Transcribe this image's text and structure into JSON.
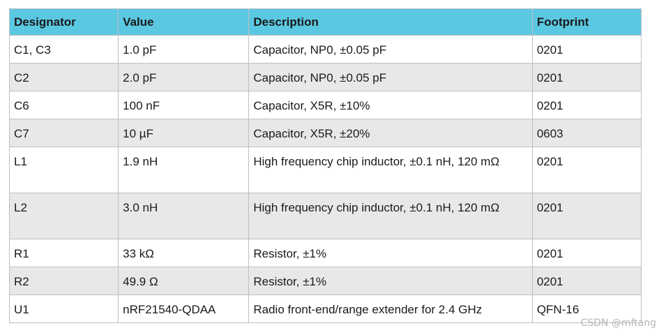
{
  "table": {
    "headers": {
      "designator": "Designator",
      "value": "Value",
      "description": "Description",
      "footprint": "Footprint"
    },
    "rows": [
      {
        "designator": "C1, C3",
        "value": "1.0 pF",
        "description": "Capacitor, NP0, ±0.05 pF",
        "footprint": "0201"
      },
      {
        "designator": "C2",
        "value": "2.0 pF",
        "description": "Capacitor, NP0, ±0.05 pF",
        "footprint": "0201"
      },
      {
        "designator": "C6",
        "value": "100 nF",
        "description": "Capacitor, X5R, ±10%",
        "footprint": "0201"
      },
      {
        "designator": "C7",
        "value": "10 µF",
        "description": "Capacitor, X5R, ±20%",
        "footprint": "0603"
      },
      {
        "designator": "L1",
        "value": "1.9 nH",
        "description": "High frequency chip inductor, ±0.1 nH, 120 mΩ",
        "footprint": "0201"
      },
      {
        "designator": "L2",
        "value": "3.0 nH",
        "description": "High frequency chip inductor, ±0.1 nH, 120 mΩ",
        "footprint": "0201"
      },
      {
        "designator": "R1",
        "value": "33 kΩ",
        "description": "Resistor, ±1%",
        "footprint": "0201"
      },
      {
        "designator": "R2",
        "value": "49.9 Ω",
        "description": "Resistor, ±1%",
        "footprint": "0201"
      },
      {
        "designator": "U1",
        "value": "nRF21540-QDAA",
        "description": "Radio front-end/range extender for 2.4 GHz",
        "footprint": "QFN-16"
      }
    ]
  },
  "watermark": "CSDN @mftang",
  "colors": {
    "header_bg": "#5bc8e2",
    "stripe_bg": "#e8e8e8",
    "border": "#bfbfbf"
  }
}
